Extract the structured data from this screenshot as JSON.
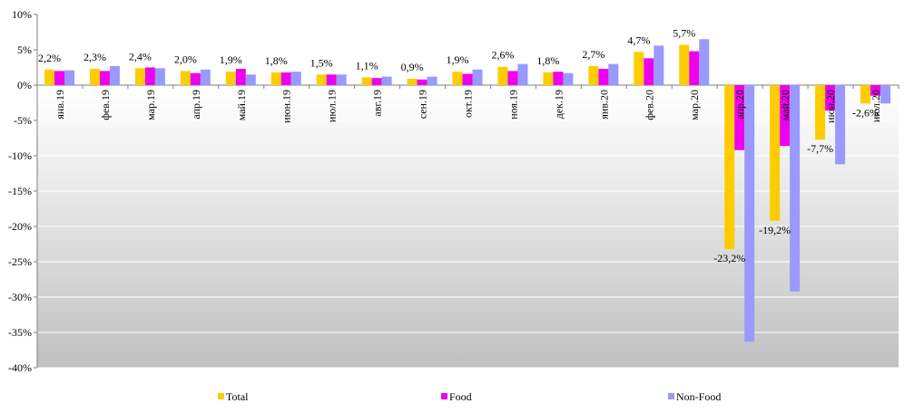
{
  "chart_data": {
    "type": "bar",
    "categories": [
      "янв.19",
      "фев.19",
      "мар.19",
      "апр.19",
      "май.19",
      "июн.19",
      "июл.19",
      "авг.19",
      "сен.19",
      "окт.19",
      "ноя.19",
      "дек.19",
      "янв.20",
      "фев.20",
      "мар.20",
      "апр.20",
      "май.20",
      "июн.20",
      "июл.20"
    ],
    "series": [
      {
        "name": "Total",
        "color": "#FFCC00",
        "values": [
          2.2,
          2.3,
          2.4,
          2.0,
          1.9,
          1.8,
          1.5,
          1.1,
          0.9,
          1.9,
          2.6,
          1.8,
          2.7,
          4.7,
          5.7,
          -23.2,
          -19.2,
          -7.7,
          -2.6
        ]
      },
      {
        "name": "Food",
        "color": "#EE00EE",
        "values": [
          2.0,
          2.0,
          2.5,
          1.7,
          2.3,
          1.8,
          1.5,
          1.0,
          0.8,
          1.6,
          2.0,
          1.9,
          2.3,
          3.8,
          4.8,
          -9.2,
          -8.6,
          -3.6,
          -1.5
        ]
      },
      {
        "name": "Non-Food",
        "color": "#9999FF",
        "values": [
          2.1,
          2.7,
          2.4,
          2.2,
          1.5,
          1.9,
          1.5,
          1.2,
          1.2,
          2.2,
          3.0,
          1.7,
          3.0,
          5.6,
          6.5,
          -36.3,
          -29.2,
          -11.2,
          -2.6
        ]
      }
    ],
    "data_labels": [
      "2,2%",
      "2,3%",
      "2,4%",
      "2,0%",
      "1,9%",
      "1,8%",
      "1,5%",
      "1,1%",
      "0,9%",
      "1,9%",
      "2,6%",
      "1,8%",
      "2,7%",
      "4,7%",
      "5,7%",
      "-23,2%",
      "-19,2%",
      "-7,7%",
      "-2,6%"
    ],
    "y_ticks": [
      10,
      5,
      0,
      -5,
      -10,
      -15,
      -20,
      -25,
      -30,
      -35,
      -40
    ],
    "y_tick_labels": [
      "10%",
      "5%",
      "0%",
      "-5%",
      "-10%",
      "-15%",
      "-20%",
      "-25%",
      "-30%",
      "-35%",
      "-40%"
    ],
    "ylim": [
      -40,
      10
    ],
    "grid": true,
    "legend_position": "bottom",
    "title": "",
    "xlabel": "",
    "ylabel": ""
  }
}
